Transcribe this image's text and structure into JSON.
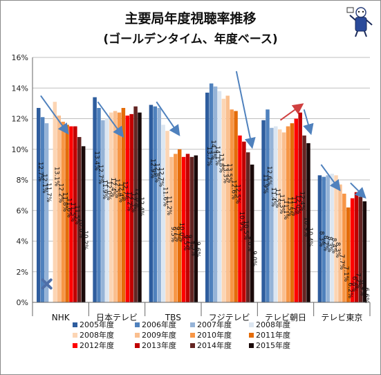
{
  "chart_data": {
    "type": "bar",
    "title": "主要局年度視聴率推移",
    "subtitle": "(ゴールデンタイム、年度ベース)",
    "categories": [
      "NHK",
      "日本テレビ",
      "TBS",
      "フジテレビ",
      "テレビ朝日",
      "テレビ東京"
    ],
    "y_ticks": [
      "0%",
      "2%",
      "4%",
      "6%",
      "8%",
      "10%",
      "12%",
      "14%",
      "16%"
    ],
    "ylim": [
      0,
      16
    ],
    "grid": true,
    "legend_position": "bottom",
    "series": [
      {
        "name": "2005年度",
        "color": "#2e5d9e",
        "values": [
          12.7,
          13.4,
          12.9,
          13.7,
          11.9,
          8.3
        ]
      },
      {
        "name": "2006年度",
        "color": "#4f81bd",
        "values": [
          12.1,
          12.7,
          12.8,
          14.3,
          12.6,
          8.2
        ]
      },
      {
        "name": "2007年度",
        "color": "#95b3d7",
        "values": [
          11.7,
          11.9,
          12.7,
          14.1,
          11.4,
          8.3
        ]
      },
      {
        "name": "2008年度",
        "color": "#dce6f1",
        "values": [
          null,
          12.0,
          11.6,
          13.8,
          11.5,
          8.4
        ]
      },
      {
        "name": "2008年度",
        "color": "#fcd5b4",
        "values": [
          13.1,
          12.4,
          11.2,
          13.3,
          11.3,
          8.3
        ]
      },
      {
        "name": "2009年度",
        "color": "#fabf8f",
        "values": [
          12.2,
          12.5,
          9.5,
          13.5,
          11.1,
          7.7
        ]
      },
      {
        "name": "2010年度",
        "color": "#f79646",
        "values": [
          11.8,
          12.4,
          9.7,
          12.6,
          11.5,
          7.1
        ]
      },
      {
        "name": "2011年度",
        "color": "#e46c0a",
        "values": [
          11.6,
          12.7,
          10.0,
          12.5,
          11.7,
          6.2
        ]
      },
      {
        "name": "2012年度",
        "color": "#ff0000",
        "values": [
          11.5,
          12.2,
          9.5,
          10.9,
          12.0,
          6.8
        ]
      },
      {
        "name": "2013年度",
        "color": "#c00000",
        "values": [
          11.5,
          12.3,
          9.7,
          10.5,
          12.4,
          7.2
        ]
      },
      {
        "name": "2014年度",
        "color": "#632523",
        "values": [
          10.8,
          12.8,
          9.5,
          9.8,
          10.9,
          6.9
        ]
      },
      {
        "name": "2015年度",
        "color": "#1a0a0a",
        "values": [
          10.2,
          12.4,
          9.6,
          9.0,
          10.4,
          6.6
        ]
      }
    ],
    "value_label_texts": [
      [
        "12.7%",
        "12.1%",
        "11.7%",
        "",
        "13.1%",
        "12.2%",
        "11.8%",
        "11.6%",
        "11.5%",
        "11.5%",
        "10.8%",
        "10.2%"
      ],
      [
        "13.4%",
        "12.7%",
        "11.9%",
        "12.0%",
        "12.4%",
        "12.5%",
        "12.4%",
        "12.7%",
        "12.2%",
        "12.3%",
        "12.8%",
        "12.4%"
      ],
      [
        "12.9%",
        "12.8%",
        "12.7%",
        "11.6%",
        "11.2%",
        "9.5%",
        "9.7%",
        "10.0%",
        "9.5%",
        "9.7%",
        "9.5%",
        "9.6%"
      ],
      [
        "13.7%",
        "14.3%",
        "14.1%",
        "13.8%",
        "13.3%",
        "13.5%",
        "12.6%",
        "12.5%",
        "10.9%",
        "10.5%",
        "9.8%",
        "9.0%"
      ],
      [
        "11.9%",
        "12.6%",
        "11.4%",
        "11.5%",
        "11.3%",
        "11.1%",
        "11.5%",
        "11.7%",
        "12.0%",
        "12.4%",
        "10.9%",
        "10.4%"
      ],
      [
        "8.3%",
        "8.2%",
        "8.3%",
        "8.4%",
        "8.3%",
        "7.7%",
        "7.1%",
        "6.2%",
        "6.8%",
        "7.2%",
        "6.9%",
        "6.6%"
      ]
    ]
  }
}
